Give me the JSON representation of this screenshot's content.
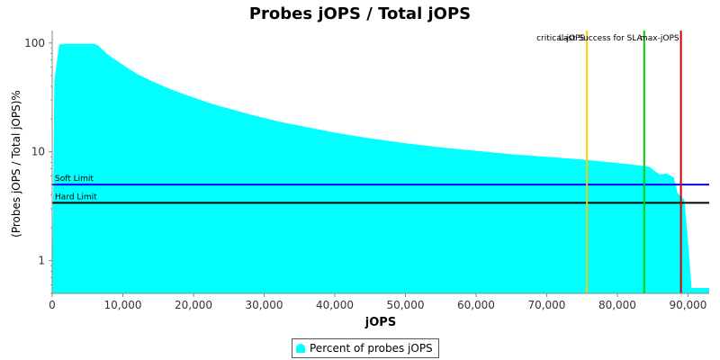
{
  "chart_data": {
    "type": "area",
    "title": "Probes jOPS / Total jOPS",
    "xlabel": "jOPS",
    "ylabel": "(Probes jOPS / Total jOPS)%",
    "xlim": [
      0,
      93000
    ],
    "ylim": [
      0.5,
      130
    ],
    "y_scale": "log",
    "grid": false,
    "legend_position": "bottom",
    "x_ticks": [
      0,
      10000,
      20000,
      30000,
      40000,
      50000,
      60000,
      70000,
      80000,
      90000
    ],
    "x_tick_labels": [
      "0",
      "10,000",
      "20,000",
      "30,000",
      "40,000",
      "50,000",
      "60,000",
      "70,000",
      "80,000",
      "90,000"
    ],
    "y_ticks": [
      1,
      10,
      100
    ],
    "y_tick_labels": [
      "1",
      "10",
      "100"
    ],
    "series": [
      {
        "name": "Percent of probes jOPS",
        "color": "#00ffff",
        "x": [
          0,
          300,
          1000,
          2000,
          4000,
          6000,
          6500,
          8000,
          10000,
          12000,
          14000,
          16000,
          18000,
          20000,
          22000,
          24000,
          26000,
          28000,
          30000,
          32000,
          35000,
          40000,
          45000,
          50000,
          55000,
          60000,
          65000,
          70000,
          75000,
          80000,
          83000,
          84500,
          85500,
          86000,
          87000,
          88000,
          88500,
          89000,
          89500,
          90000,
          90500,
          92000,
          93000
        ],
        "y": [
          0.5,
          45,
          97,
          98,
          98,
          98,
          95,
          77,
          63,
          52,
          45,
          39.5,
          35,
          31.5,
          28.5,
          26,
          24,
          22,
          20.5,
          19,
          17.4,
          15,
          13.3,
          12,
          11,
          10.2,
          9.5,
          9,
          8.5,
          7.9,
          7.5,
          7.3,
          6.5,
          6.2,
          6.3,
          5.8,
          4.2,
          3.9,
          3.6,
          1.5,
          0.56,
          0.56,
          0.56
        ]
      }
    ],
    "reference_lines": [
      {
        "name": "Soft Limit",
        "orientation": "horizontal",
        "value": 5.0,
        "color": "#0000ff"
      },
      {
        "name": "Hard Limit",
        "orientation": "horizontal",
        "value": 3.4,
        "color": "#000000"
      }
    ],
    "markers": [
      {
        "name": "critical-jOPS",
        "orientation": "vertical",
        "value": 75700,
        "color": "#ffcc00"
      },
      {
        "name": "Last Success for SLA",
        "orientation": "vertical",
        "value": 83800,
        "color": "#00cc00"
      },
      {
        "name": "max-jOPS",
        "orientation": "vertical",
        "value": 89000,
        "color": "#cc0000"
      }
    ]
  }
}
